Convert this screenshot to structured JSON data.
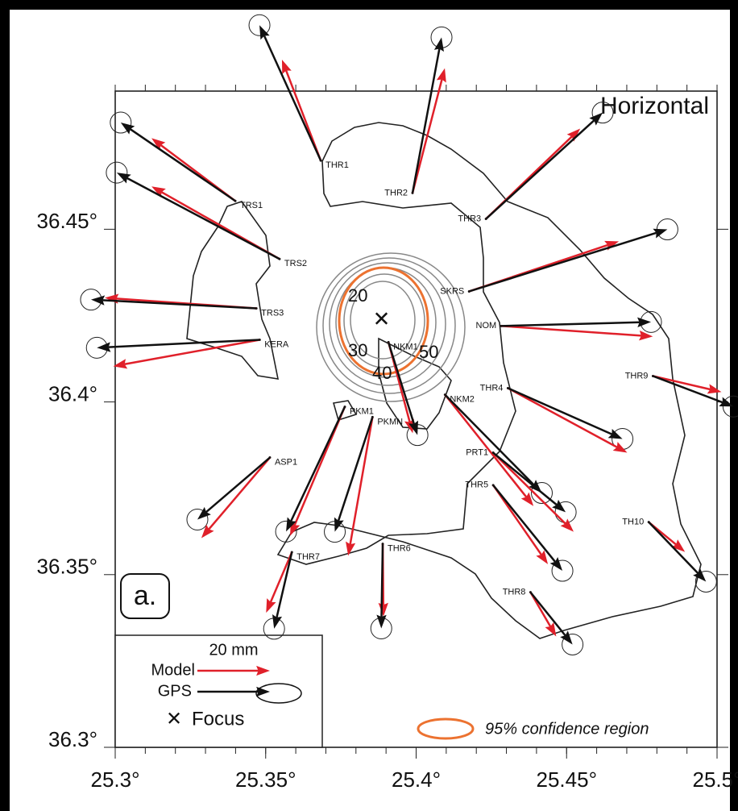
{
  "map": {
    "title": "Horizontal",
    "panel": "a.",
    "xlim": [
      25.3,
      25.5
    ],
    "ylim": [
      36.3,
      36.49
    ],
    "xticks": [
      {
        "value": 25.3,
        "label": "25.3°"
      },
      {
        "value": 25.35,
        "label": "25.35°"
      },
      {
        "value": 25.4,
        "label": "25.4°"
      },
      {
        "value": 25.45,
        "label": "25.45°"
      },
      {
        "value": 25.5,
        "label": "25.5°"
      }
    ],
    "yticks": [
      {
        "value": 36.3,
        "label": "36.3°"
      },
      {
        "value": 36.35,
        "label": "36.35°"
      },
      {
        "value": 36.4,
        "label": "36.4°"
      },
      {
        "value": 36.45,
        "label": "36.45°"
      }
    ],
    "model_color": "#e0202a",
    "gps_color": "#111111",
    "focus": {
      "lon": 25.3885,
      "lat": 36.4238
    },
    "contour_labels": [
      "20",
      "30",
      "40",
      "50"
    ],
    "legend": {
      "scale": "20 mm",
      "model": "Model",
      "gps": "GPS",
      "focus": "Focus",
      "confidence": "95% confidence region"
    },
    "stations": [
      {
        "name": "THR1",
        "lon": 25.3683,
        "lat": 36.4699,
        "gps": [
          -16.9,
          37.3
        ],
        "model": [
          -10.7,
          27.8
        ]
      },
      {
        "name": "THR2",
        "lon": 25.3988,
        "lat": 36.4605,
        "gps": [
          8,
          42.9
        ],
        "model": [
          8.9,
          34.4
        ]
      },
      {
        "name": "TRS1",
        "lon": 25.3399,
        "lat": 36.4582,
        "gps": [
          -31.6,
          21.6
        ],
        "model": [
          -23.1,
          17.3
        ]
      },
      {
        "name": "TRS2",
        "lon": 25.3546,
        "lat": 36.4414,
        "gps": [
          -44.9,
          23.8
        ],
        "model": [
          -35.3,
          20
        ]
      },
      {
        "name": "TRS3",
        "lon": 25.3469,
        "lat": 36.4271,
        "gps": [
          -45.6,
          2.4
        ],
        "model": [
          -41.8,
          2.9
        ]
      },
      {
        "name": "KERA",
        "lon": 25.348,
        "lat": 36.418,
        "gps": [
          -44.9,
          -2.2
        ],
        "model": [
          -40.4,
          -7.3
        ]
      },
      {
        "name": "THR3",
        "lon": 25.4232,
        "lat": 36.453,
        "gps": [
          32.2,
          29.3
        ],
        "model": [
          26,
          24.9
        ]
      },
      {
        "name": "SKRS",
        "lon": 25.4176,
        "lat": 36.432,
        "gps": [
          54.7,
          17.1
        ],
        "model": [
          41.3,
          13.8
        ]
      },
      {
        "name": "NOM",
        "lon": 25.4283,
        "lat": 36.422,
        "gps": [
          41.3,
          1.1
        ],
        "model": [
          41.8,
          -2.9
        ]
      },
      {
        "name": "THR9",
        "lon": 25.4787,
        "lat": 36.4075,
        "gps": [
          22.2,
          -8.4
        ],
        "model": [
          18.9,
          -4.4
        ]
      },
      {
        "name": "THR4",
        "lon": 25.4305,
        "lat": 36.404,
        "gps": [
          31.6,
          -14
        ],
        "model": [
          32.9,
          -17.8
        ]
      },
      {
        "name": "NKM2",
        "lon": 25.4096,
        "lat": 36.4021,
        "gps": [
          26.7,
          -27.1
        ],
        "model": [
          24.4,
          -30.7
        ]
      },
      {
        "name": "PRT1",
        "lon": 25.4256,
        "lat": 36.3853,
        "gps": [
          20,
          -16.4
        ],
        "model": [
          22.2,
          -21.8
        ]
      },
      {
        "name": "THR5",
        "lon": 25.4256,
        "lat": 36.3759,
        "gps": [
          19.1,
          -23.6
        ],
        "model": [
          15.1,
          -21.8
        ]
      },
      {
        "name": "TH10",
        "lon": 25.4773,
        "lat": 36.3652,
        "gps": [
          15.8,
          -16.4
        ],
        "model": [
          10,
          -8.2
        ]
      },
      {
        "name": "THR8",
        "lon": 25.438,
        "lat": 36.3449,
        "gps": [
          11.6,
          -14.4
        ],
        "model": [
          7.1,
          -12.2
        ]
      },
      {
        "name": "NKM1",
        "lon": 25.3908,
        "lat": 36.4173,
        "gps": [
          8,
          -25.6
        ],
        "model": [
          6.7,
          -25.1
        ]
      },
      {
        "name": "PKM1",
        "lon": 25.3763,
        "lat": 36.3986,
        "gps": [
          -16.2,
          -34.4
        ],
        "model": [
          -15.1,
          -35.6
        ]
      },
      {
        "name": "PKMN",
        "lon": 25.3855,
        "lat": 36.3956,
        "gps": [
          -10.4,
          -31.6
        ],
        "model": [
          -6.7,
          -38.2
        ]
      },
      {
        "name": "THR6",
        "lon": 25.3889,
        "lat": 36.3589,
        "gps": [
          -0.4,
          -23.3
        ],
        "model": [
          0.2,
          -20
        ]
      },
      {
        "name": "THR7",
        "lon": 25.3587,
        "lat": 36.3565,
        "gps": [
          -4.9,
          -21.1
        ],
        "model": [
          -7.1,
          -16.7
        ]
      },
      {
        "name": "ASP1",
        "lon": 25.3514,
        "lat": 36.3839,
        "gps": [
          -20,
          -17.1
        ],
        "model": [
          -18.9,
          -22.2
        ]
      }
    ]
  }
}
